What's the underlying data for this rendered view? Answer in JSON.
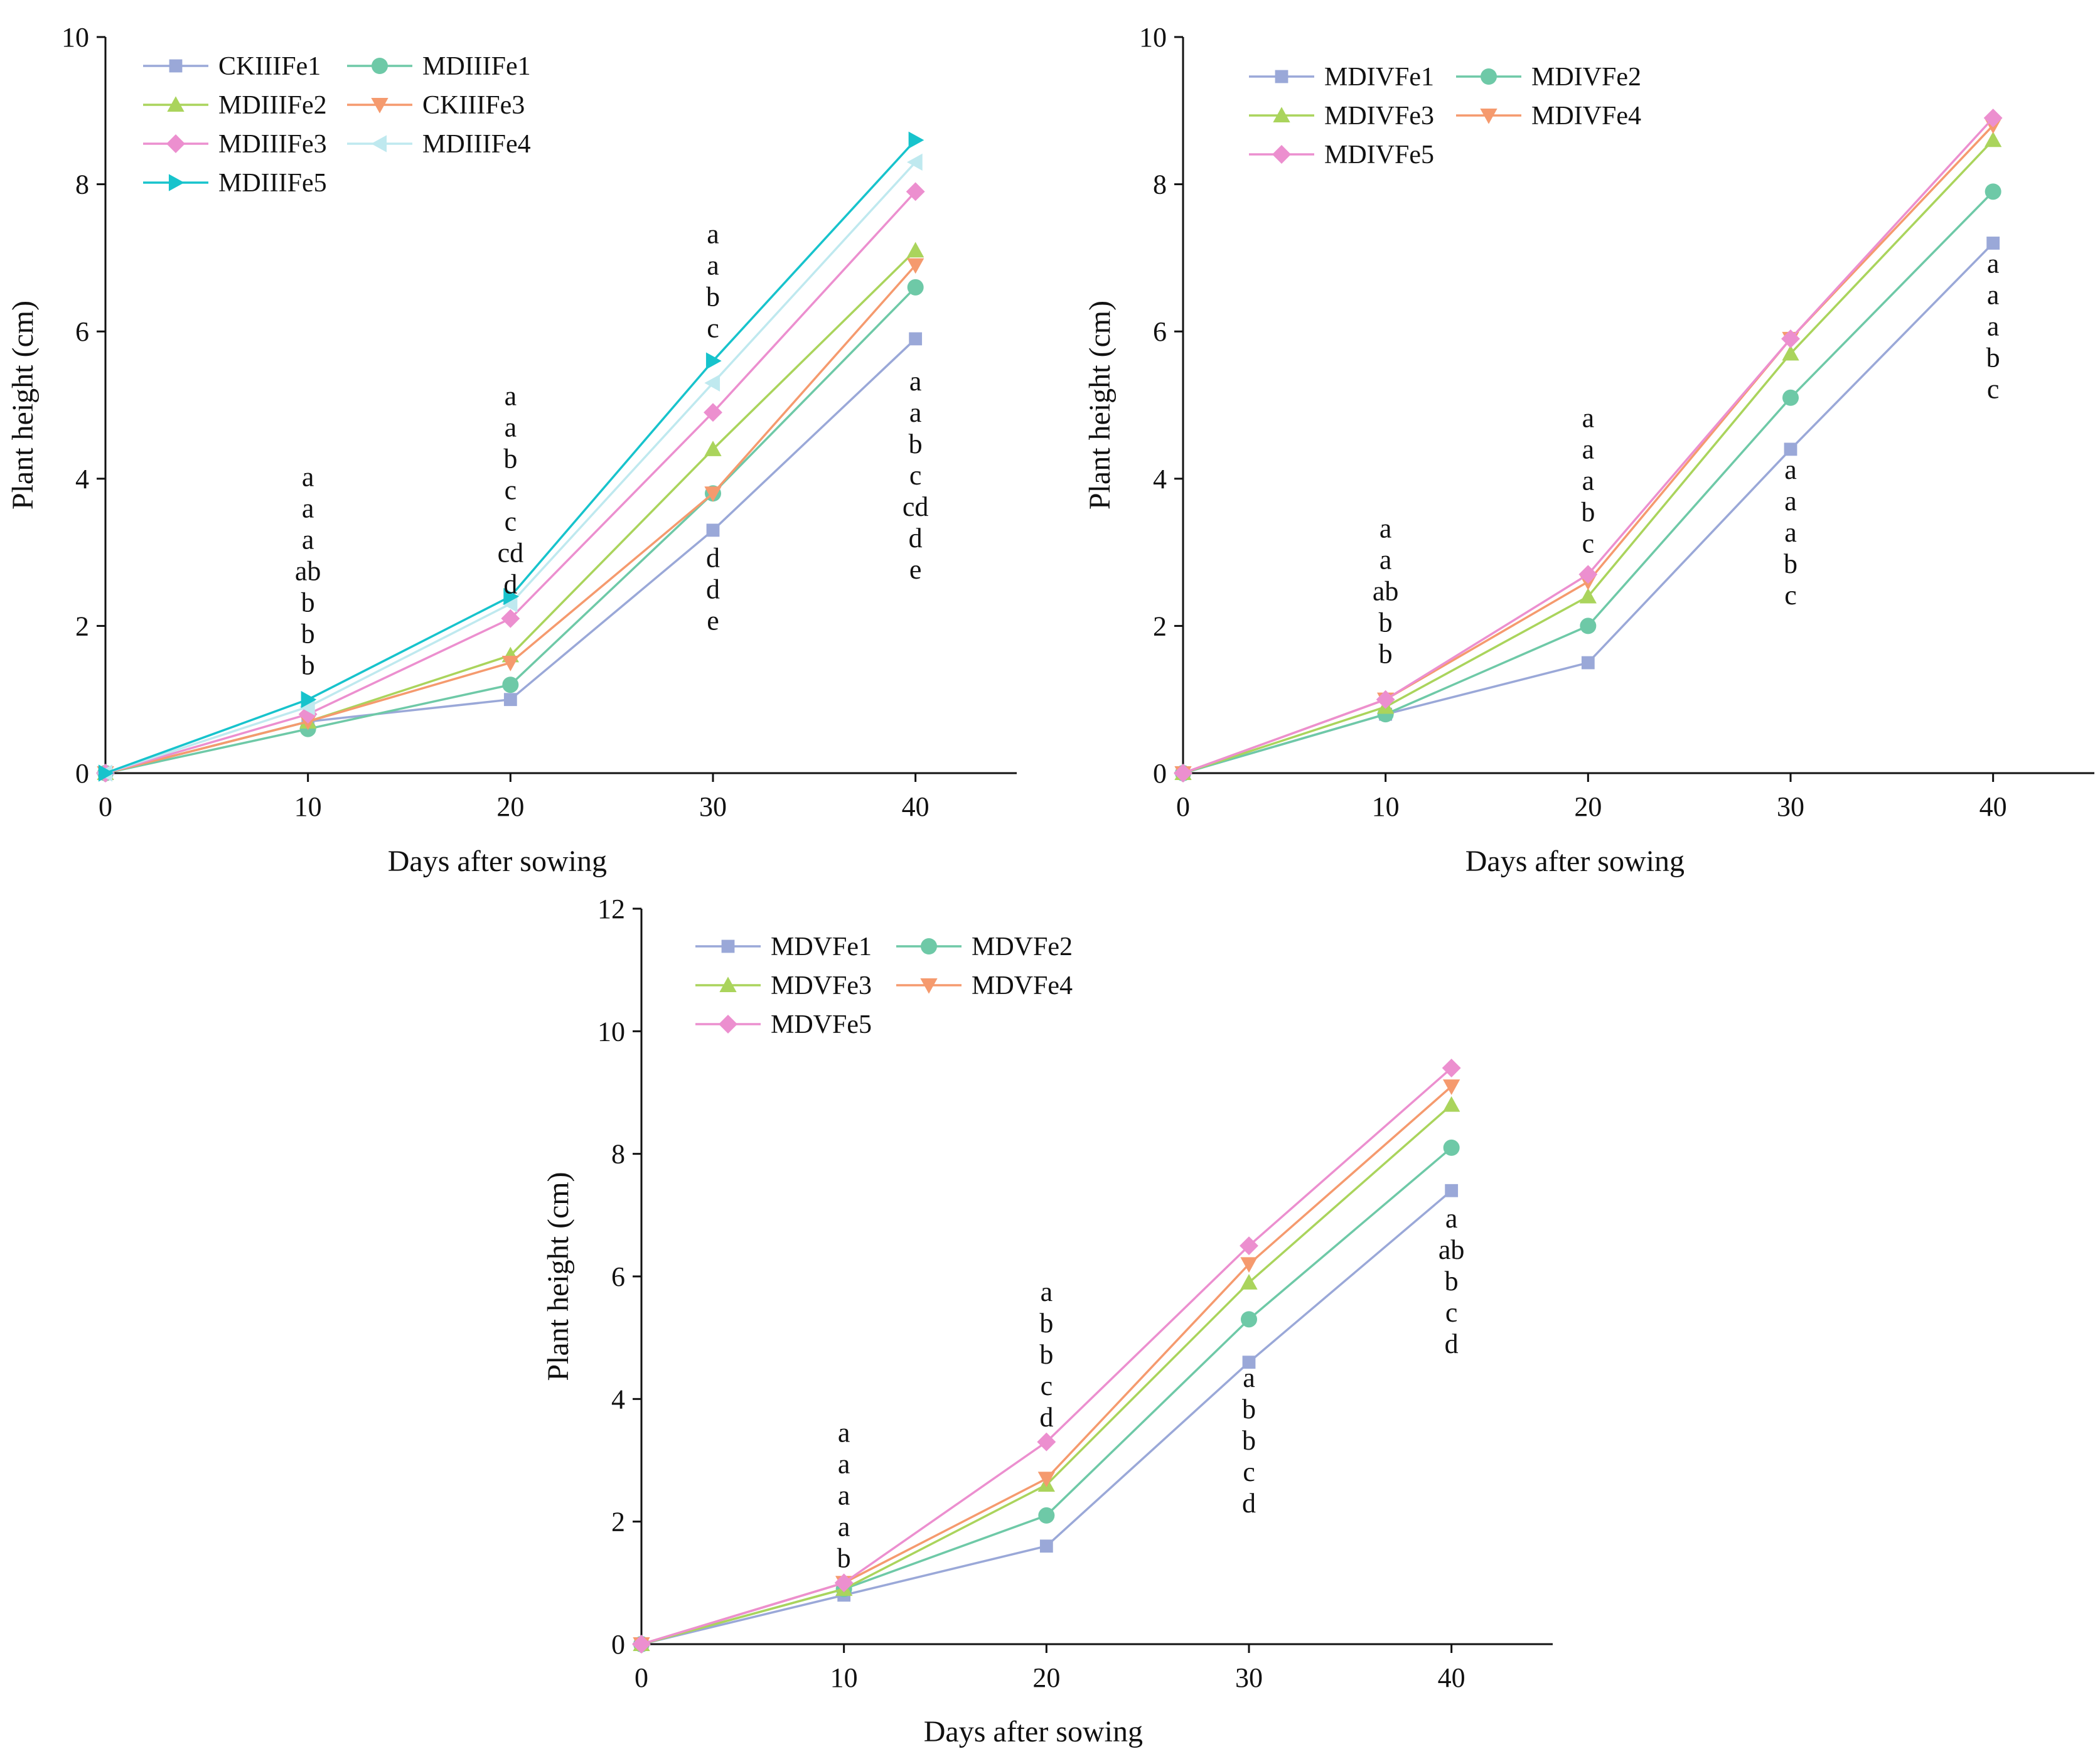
{
  "chart_data": [
    {
      "type": "line",
      "name": "top-left",
      "xlabel": "Days after sowing",
      "ylabel": "Plant height (cm)",
      "xlim": [
        0,
        45
      ],
      "ylim": [
        0,
        10
      ],
      "xticks": [
        0,
        10,
        20,
        30,
        40
      ],
      "yticks": [
        0,
        2,
        4,
        6,
        8,
        10
      ],
      "legend_position": "top-left",
      "x": [
        0,
        10,
        20,
        30,
        40
      ],
      "series": [
        {
          "name": "CKIIIFe1",
          "color": "#9aa8d8",
          "marker": "square",
          "values": [
            0,
            0.7,
            1.0,
            3.3,
            5.9
          ]
        },
        {
          "name": "MDIIIFe1",
          "color": "#6ec9a7",
          "marker": "circle",
          "values": [
            0,
            0.6,
            1.2,
            3.8,
            6.6
          ]
        },
        {
          "name": "MDIIIFe2",
          "color": "#aad45c",
          "marker": "triangle-up",
          "values": [
            0,
            0.7,
            1.6,
            4.4,
            7.1
          ]
        },
        {
          "name": "CKIIIFe3",
          "color": "#f59a6e",
          "marker": "triangle-down",
          "values": [
            0,
            0.7,
            1.5,
            3.8,
            6.9
          ]
        },
        {
          "name": "MDIIIFe3",
          "color": "#ec8fcf",
          "marker": "diamond",
          "values": [
            0,
            0.8,
            2.1,
            4.9,
            7.9
          ]
        },
        {
          "name": "MDIIIFe4",
          "color": "#bfe9ef",
          "marker": "triangle-left",
          "values": [
            0,
            0.9,
            2.3,
            5.3,
            8.3
          ]
        },
        {
          "name": "MDIIIFe5",
          "color": "#17c3cc",
          "marker": "triangle-right",
          "values": [
            0,
            1.0,
            2.4,
            5.6,
            8.6
          ]
        }
      ],
      "annotations": [
        {
          "x": 10,
          "y_top": 3.9,
          "labels": [
            "a",
            "a",
            "a",
            "ab",
            "b",
            "b",
            "b"
          ]
        },
        {
          "x": 20,
          "y_top": 5.0,
          "labels": [
            "a",
            "a",
            "b",
            "c",
            "c",
            "cd",
            "d"
          ]
        },
        {
          "x": 30,
          "y_top": 7.2,
          "labels": [
            "a",
            "a",
            "b",
            "c"
          ]
        },
        {
          "x": 30,
          "y_top": 2.8,
          "labels": [
            "d",
            "d",
            "e"
          ]
        },
        {
          "x": 40,
          "y_top": 5.2,
          "labels": [
            "a",
            "a",
            "b",
            "c",
            "cd",
            "d",
            "e"
          ]
        }
      ]
    },
    {
      "type": "line",
      "name": "top-right",
      "xlabel": "Days after sowing",
      "ylabel": "Plant height (cm)",
      "xlim": [
        0,
        45
      ],
      "ylim": [
        0,
        10
      ],
      "xticks": [
        0,
        10,
        20,
        30,
        40
      ],
      "yticks": [
        0,
        2,
        4,
        6,
        8,
        10
      ],
      "legend_position": "top-left",
      "x": [
        0,
        10,
        20,
        30,
        40
      ],
      "series": [
        {
          "name": "MDIVFe1",
          "color": "#9aa8d8",
          "marker": "square",
          "values": [
            0,
            0.8,
            1.5,
            4.4,
            7.2
          ]
        },
        {
          "name": "MDIVFe2",
          "color": "#6ec9a7",
          "marker": "circle",
          "values": [
            0,
            0.8,
            2.0,
            5.1,
            7.9
          ]
        },
        {
          "name": "MDIVFe3",
          "color": "#aad45c",
          "marker": "triangle-up",
          "values": [
            0,
            0.9,
            2.4,
            5.7,
            8.6
          ]
        },
        {
          "name": "MDIVFe4",
          "color": "#f59a6e",
          "marker": "triangle-down",
          "values": [
            0,
            1.0,
            2.6,
            5.9,
            8.8
          ]
        },
        {
          "name": "MDIVFe5",
          "color": "#ec8fcf",
          "marker": "diamond",
          "values": [
            0,
            1.0,
            2.7,
            5.9,
            8.9
          ]
        }
      ],
      "annotations": [
        {
          "x": 10,
          "y_top": 3.2,
          "labels": [
            "a",
            "a",
            "ab",
            "b",
            "b"
          ]
        },
        {
          "x": 20,
          "y_top": 4.7,
          "labels": [
            "a",
            "a",
            "a",
            "b",
            "c"
          ]
        },
        {
          "x": 30,
          "y_top": 4.0,
          "labels": [
            "a",
            "a",
            "a",
            "b",
            "c"
          ]
        },
        {
          "x": 40,
          "y_top": 6.8,
          "labels": [
            "a",
            "a",
            "a",
            "b",
            "c"
          ]
        }
      ]
    },
    {
      "type": "line",
      "name": "bottom",
      "xlabel": "Days after sowing",
      "ylabel": "Plant height (cm)",
      "xlim": [
        0,
        45
      ],
      "ylim": [
        0,
        12
      ],
      "xticks": [
        0,
        10,
        20,
        30,
        40
      ],
      "yticks": [
        0,
        2,
        4,
        6,
        8,
        10,
        12
      ],
      "legend_position": "top-left",
      "x": [
        0,
        10,
        20,
        30,
        40
      ],
      "series": [
        {
          "name": "MDVFe1",
          "color": "#9aa8d8",
          "marker": "square",
          "values": [
            0,
            0.8,
            1.6,
            4.6,
            7.4
          ]
        },
        {
          "name": "MDVFe2",
          "color": "#6ec9a7",
          "marker": "circle",
          "values": [
            0,
            0.9,
            2.1,
            5.3,
            8.1
          ]
        },
        {
          "name": "MDVFe3",
          "color": "#aad45c",
          "marker": "triangle-up",
          "values": [
            0,
            0.9,
            2.6,
            5.9,
            8.8
          ]
        },
        {
          "name": "MDVFe4",
          "color": "#f59a6e",
          "marker": "triangle-down",
          "values": [
            0,
            1.0,
            2.7,
            6.2,
            9.1
          ]
        },
        {
          "name": "MDVFe5",
          "color": "#ec8fcf",
          "marker": "diamond",
          "values": [
            0,
            1.0,
            3.3,
            6.5,
            9.4
          ]
        }
      ],
      "annotations": [
        {
          "x": 10,
          "y_top": 3.3,
          "labels": [
            "a",
            "a",
            "a",
            "a",
            "b"
          ]
        },
        {
          "x": 20,
          "y_top": 5.6,
          "labels": [
            "a",
            "b",
            "b",
            "c",
            "d"
          ]
        },
        {
          "x": 30,
          "y_top": 4.2,
          "labels": [
            "a",
            "b",
            "b",
            "c",
            "d"
          ]
        },
        {
          "x": 40,
          "y_top": 6.8,
          "labels": [
            "a",
            "ab",
            "b",
            "c",
            "d"
          ]
        }
      ]
    }
  ]
}
